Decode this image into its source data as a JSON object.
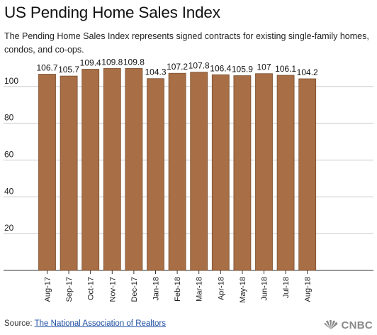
{
  "header": {
    "title": "US Pending Home Sales Index",
    "subtitle": "The Pending Home Sales Index represents signed contracts for existing single-family homes, condos, and co-ops."
  },
  "footer": {
    "source_prefix": "Source:",
    "source_link": "The National Association of Realtors",
    "brand": "CNBC"
  },
  "colors": {
    "bar": "#A86E45",
    "bar_stroke": "#7a4f30",
    "grid": "#c8c8c8",
    "axis": "#333333"
  },
  "chart_data": {
    "type": "bar",
    "categories": [
      "Aug-17",
      "Sep-17",
      "Oct-17",
      "Nov-17",
      "Dec-17",
      "Jan-18",
      "Feb-18",
      "Mar-18",
      "Apr-18",
      "May-18",
      "Jun-18",
      "Jul-18",
      "Aug-18"
    ],
    "values": [
      106.7,
      105.7,
      109.4,
      109.8,
      109.8,
      104.3,
      107.2,
      107.8,
      106.4,
      105.9,
      107,
      106.1,
      104.2
    ],
    "data_labels": [
      "106.7",
      "105.7",
      "109.4",
      "109.8",
      "109.8",
      "104.3",
      "107.2",
      "107.8",
      "106.4",
      "105.9",
      "107",
      "106.1",
      "104.2"
    ],
    "y_ticks": [
      20,
      40,
      60,
      80,
      100
    ],
    "ylim": [
      0,
      115
    ],
    "grid": true,
    "xlabel": "",
    "ylabel": ""
  }
}
